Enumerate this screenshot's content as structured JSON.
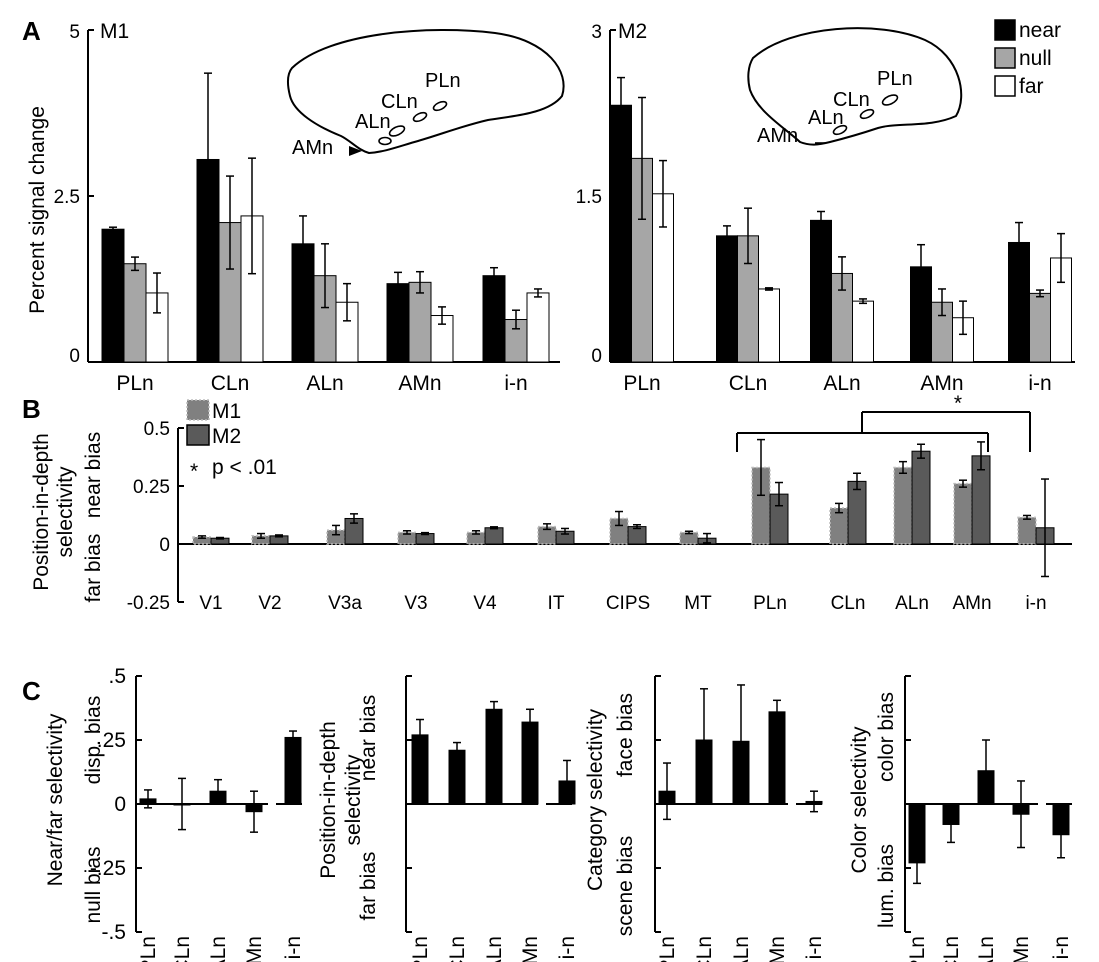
{
  "colors": {
    "near": "#000000",
    "null": "#a6a6a6",
    "far": "#ffffff",
    "M1": "#808080",
    "M2": "#5a5a5a",
    "C": "#000000"
  },
  "panel_labels": {
    "A": "A",
    "B": "B",
    "C": "C"
  },
  "chart_data": [
    {
      "id": "A-M1",
      "type": "bar",
      "panel_label": "A",
      "title": "M1",
      "ylabel": "Percent signal change",
      "ylim": [
        0,
        5
      ],
      "yticks": [
        {
          "v": 0,
          "label": "0"
        },
        {
          "v": 2.5,
          "label": "2.5"
        },
        {
          "v": 5,
          "label": "5"
        }
      ],
      "categories": [
        "PLn",
        "CLn",
        "ALn",
        "AMn",
        "i-n"
      ],
      "series": [
        {
          "name": "near",
          "values": [
            2.0,
            3.05,
            1.78,
            1.18,
            1.3
          ],
          "errors": [
            0.03,
            1.3,
            0.42,
            0.17,
            0.12
          ]
        },
        {
          "name": "null",
          "values": [
            1.48,
            2.1,
            1.3,
            1.2,
            0.64
          ],
          "errors": [
            0.1,
            0.7,
            0.48,
            0.16,
            0.14
          ]
        },
        {
          "name": "far",
          "values": [
            1.04,
            2.2,
            0.9,
            0.7,
            1.04
          ],
          "errors": [
            0.3,
            0.87,
            0.28,
            0.13,
            0.06
          ]
        }
      ],
      "inset_labels": [
        {
          "text": "PLn"
        },
        {
          "text": "CLn"
        },
        {
          "text": "ALn"
        },
        {
          "text": "AMn"
        }
      ]
    },
    {
      "id": "A-M2",
      "type": "bar",
      "title": "M2",
      "ylim": [
        0,
        3
      ],
      "yticks": [
        {
          "v": 0,
          "label": "0"
        },
        {
          "v": 1.5,
          "label": "1.5"
        },
        {
          "v": 3,
          "label": "3"
        }
      ],
      "categories": [
        "PLn",
        "CLn",
        "ALn",
        "AMn",
        "i-n"
      ],
      "legend": {
        "position": "top-right",
        "entries": [
          "near",
          "null",
          "far"
        ]
      },
      "series": [
        {
          "name": "near",
          "values": [
            2.32,
            1.14,
            1.28,
            0.86,
            1.08
          ],
          "errors": [
            0.25,
            0.09,
            0.08,
            0.2,
            0.18
          ]
        },
        {
          "name": "null",
          "values": [
            1.84,
            1.14,
            0.8,
            0.54,
            0.62
          ],
          "errors": [
            0.55,
            0.25,
            0.15,
            0.12,
            0.03
          ]
        },
        {
          "name": "far",
          "values": [
            1.52,
            0.66,
            0.55,
            0.4,
            0.94
          ],
          "errors": [
            0.3,
            0.01,
            0.02,
            0.15,
            0.22
          ]
        }
      ],
      "inset_labels": [
        {
          "text": "PLn"
        },
        {
          "text": "CLn"
        },
        {
          "text": "ALn"
        },
        {
          "text": "AMn"
        }
      ]
    },
    {
      "id": "B",
      "type": "bar",
      "panel_label": "B",
      "ylabel_lines": [
        "Position-in-depth",
        "selectivity"
      ],
      "bias_labels": {
        "top": "near bias",
        "bottom": "far bias"
      },
      "ylim": [
        -0.25,
        0.5
      ],
      "yticks": [
        {
          "v": -0.25,
          "label": "-0.25"
        },
        {
          "v": 0,
          "label": "0"
        },
        {
          "v": 0.25,
          "label": "0.25"
        },
        {
          "v": 0.5,
          "label": "0.5"
        }
      ],
      "categories": [
        "V1",
        "V2",
        "V3a",
        "V3",
        "V4",
        "IT",
        "CIPS",
        "MT",
        "PLn",
        "CLn",
        "ALn",
        "AMn",
        "i-n"
      ],
      "legend": {
        "position": "top-left",
        "entries": [
          "M1",
          "M2"
        ],
        "note_star": "*",
        "note_text": "p < .01"
      },
      "series": [
        {
          "name": "M1",
          "values": [
            0.03,
            0.035,
            0.06,
            0.05,
            0.05,
            0.075,
            0.11,
            0.05,
            0.33,
            0.155,
            0.33,
            0.26,
            0.115
          ],
          "errors": [
            0.005,
            0.01,
            0.02,
            0.007,
            0.007,
            0.012,
            0.03,
            0.005,
            0.12,
            0.02,
            0.025,
            0.015,
            0.008
          ]
        },
        {
          "name": "M2",
          "values": [
            0.025,
            0.035,
            0.11,
            0.045,
            0.07,
            0.055,
            0.075,
            0.025,
            0.215,
            0.27,
            0.4,
            0.38,
            0.07
          ],
          "errors": [
            0.003,
            0.004,
            0.02,
            0.004,
            0.004,
            0.012,
            0.008,
            0.02,
            0.05,
            0.035,
            0.03,
            0.06,
            0.21
          ]
        }
      ],
      "significance": {
        "star": "*",
        "from": [
          "PLn",
          "AMn"
        ],
        "to": "i-n"
      }
    },
    {
      "id": "C1",
      "type": "bar",
      "panel_label": "C",
      "ylabel_lines": [
        "Near/far selectivity"
      ],
      "bias_labels": {
        "top": "disp. bias",
        "bottom": "null bias"
      },
      "ylim": [
        -0.5,
        0.5
      ],
      "yticks": [
        {
          "v": -0.5,
          "label": "-.5"
        },
        {
          "v": -0.25,
          "label": "-.25"
        },
        {
          "v": 0,
          "label": "0"
        },
        {
          "v": 0.25,
          "label": ".25"
        },
        {
          "v": 0.5,
          "label": ".5"
        }
      ],
      "categories": [
        "PLn",
        "CLn",
        "ALn",
        "AMn",
        "i-n"
      ],
      "values": [
        0.02,
        0.0,
        0.05,
        -0.03,
        0.26
      ],
      "errors": [
        0.035,
        0.1,
        0.045,
        0.08,
        0.025
      ]
    },
    {
      "id": "C2",
      "type": "bar",
      "ylabel_lines": [
        "Position-in-depth",
        "selectivity"
      ],
      "bias_labels": {
        "top": "near bias",
        "bottom": "far bias"
      },
      "ylim": [
        -0.5,
        0.5
      ],
      "categories": [
        "PLn",
        "CLn",
        "ALn",
        "AMn",
        "i-n"
      ],
      "values": [
        0.27,
        0.21,
        0.37,
        0.32,
        0.09
      ],
      "errors": [
        0.06,
        0.03,
        0.03,
        0.05,
        0.08
      ]
    },
    {
      "id": "C3",
      "type": "bar",
      "ylabel_lines": [
        "Category selectivity"
      ],
      "bias_labels": {
        "top": "face bias",
        "bottom": "scene bias"
      },
      "ylim": [
        -0.5,
        0.5
      ],
      "categories": [
        "PLn",
        "CLn",
        "ALn",
        "AMn",
        "i-n"
      ],
      "values": [
        0.05,
        0.25,
        0.245,
        0.36,
        0.01
      ],
      "errors": [
        0.11,
        0.2,
        0.22,
        0.045,
        0.04
      ]
    },
    {
      "id": "C4",
      "type": "bar",
      "ylabel_lines": [
        "Color selectivity"
      ],
      "bias_labels": {
        "top": "color bias",
        "bottom": "lum. bias"
      },
      "ylim": [
        -0.5,
        0.5
      ],
      "categories": [
        "PLn",
        "CLn",
        "ALn",
        "AMn",
        "i-n"
      ],
      "values": [
        -0.23,
        -0.08,
        0.13,
        -0.04,
        -0.12
      ],
      "errors": [
        0.08,
        0.07,
        0.12,
        0.13,
        0.09
      ]
    }
  ]
}
